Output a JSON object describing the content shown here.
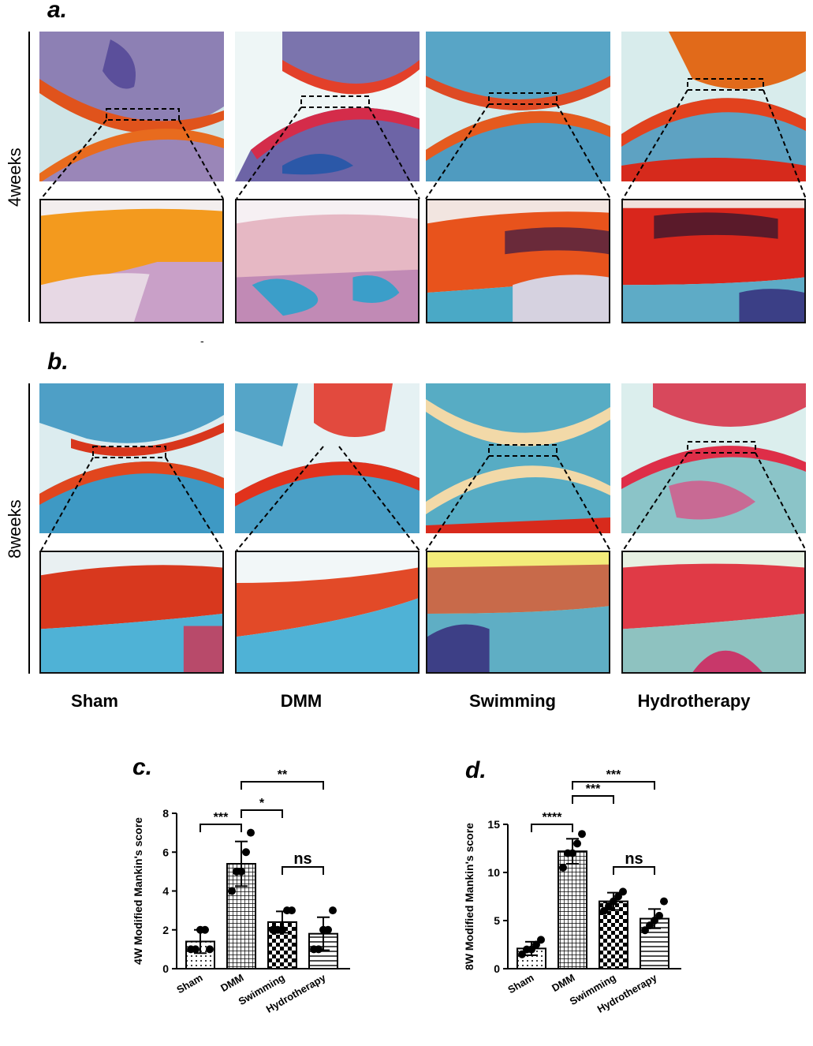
{
  "figure": {
    "panel_a": {
      "letter": "a.",
      "row_label": "4weeks"
    },
    "panel_b": {
      "letter": "b.",
      "row_label": "8weeks"
    },
    "panel_c": {
      "letter": "c."
    },
    "panel_d": {
      "letter": "d."
    },
    "stray_mark": "-",
    "groups": [
      "Sham",
      "DMM",
      "Swimming",
      "Hydrotherapy"
    ],
    "stain_colors": {
      "safranin_red": "#d8321e",
      "orange": "#f08a1c",
      "fast_green": "#3ea3c4",
      "marrow_purple": "#9b5a8e",
      "background": "#e9f3f3"
    }
  },
  "chart_data": [
    {
      "type": "bar",
      "title": "",
      "ylabel": "4W Modified Mankin's score",
      "categories": [
        "Sham",
        "DMM",
        "Swimming",
        "Hydrotherapy"
      ],
      "values": [
        1.4,
        5.4,
        2.4,
        1.8
      ],
      "sd": [
        0.6,
        1.15,
        0.55,
        0.85
      ],
      "points": [
        [
          1,
          1,
          2,
          2,
          1
        ],
        [
          4,
          5,
          5,
          6,
          7
        ],
        [
          2,
          2,
          2,
          3,
          3
        ],
        [
          1,
          1,
          2,
          2,
          3
        ]
      ],
      "patterns": [
        "dots",
        "grid",
        "checker",
        "hlines"
      ],
      "ylim": [
        0,
        8
      ],
      "yticks": [
        "0",
        "2",
        "4",
        "6",
        "8"
      ],
      "significance": [
        {
          "from": "Sham",
          "to": "DMM",
          "label": "***"
        },
        {
          "from": "DMM",
          "to": "Swimming",
          "label": "*"
        },
        {
          "from": "DMM",
          "to": "Hydrotherapy",
          "label": "**"
        },
        {
          "from": "Swimming",
          "to": "Hydrotherapy",
          "label": "ns"
        }
      ],
      "grid": false
    },
    {
      "type": "bar",
      "title": "",
      "ylabel": "8W Modified Mankin's score",
      "categories": [
        "Sham",
        "DMM",
        "Swimming",
        "Hydrotherapy"
      ],
      "values": [
        2.1,
        12.2,
        7.0,
        5.2
      ],
      "sd": [
        0.7,
        1.3,
        0.9,
        1.0
      ],
      "points": [
        [
          1.5,
          2,
          2,
          2.5,
          3
        ],
        [
          10.5,
          12,
          12,
          13,
          14
        ],
        [
          6,
          6.5,
          7,
          7.5,
          8
        ],
        [
          4,
          4.5,
          5,
          5.5,
          7
        ]
      ],
      "patterns": [
        "dots",
        "grid",
        "checker",
        "hlines"
      ],
      "ylim": [
        0,
        15
      ],
      "yticks": [
        "0",
        "5",
        "10",
        "15"
      ],
      "significance": [
        {
          "from": "Sham",
          "to": "DMM",
          "label": "****"
        },
        {
          "from": "DMM",
          "to": "Swimming",
          "label": "***"
        },
        {
          "from": "DMM",
          "to": "Hydrotherapy",
          "label": "***"
        },
        {
          "from": "Swimming",
          "to": "Hydrotherapy",
          "label": "ns"
        }
      ],
      "grid": false
    }
  ]
}
